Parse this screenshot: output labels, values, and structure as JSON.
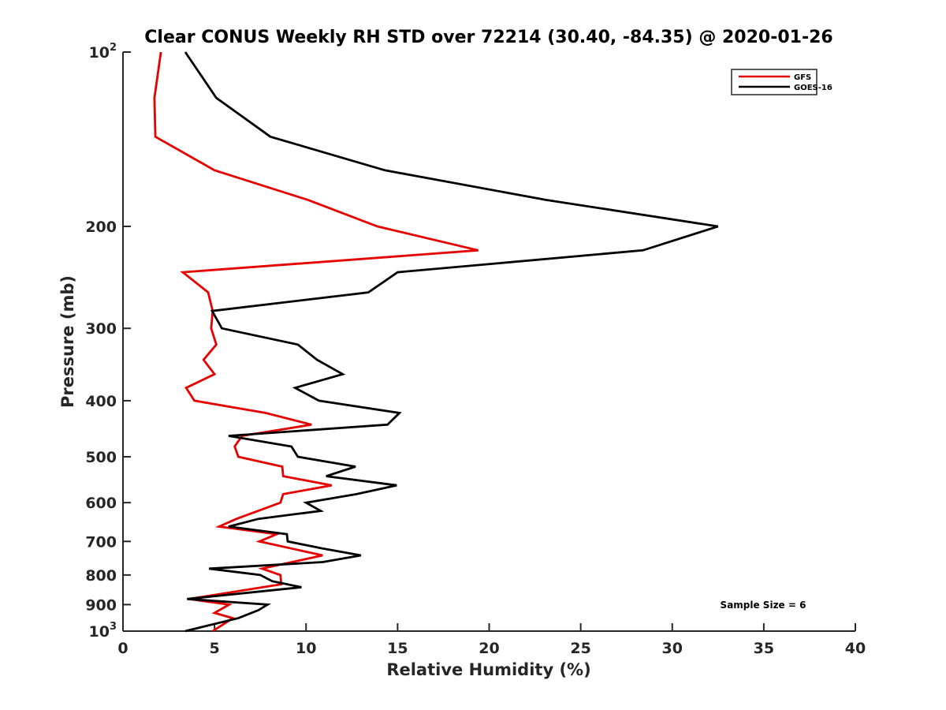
{
  "chart_data": {
    "type": "line",
    "title": "Clear CONUS Weekly RH STD over 72214 (30.40, -84.35) @ 2020-01-26",
    "xlabel": "Relative Humidity (%)",
    "ylabel": "Pressure (mb)",
    "xlim": [
      0,
      40
    ],
    "ylim": [
      100,
      1000
    ],
    "yscale": "log",
    "yaxis_reversed": true,
    "grid": false,
    "xticks": [
      0,
      5,
      10,
      15,
      20,
      25,
      30,
      35,
      40
    ],
    "xtick_labels": [
      "0",
      "5",
      "10",
      "15",
      "20",
      "25",
      "30",
      "35",
      "40"
    ],
    "yticks": [
      100,
      200,
      300,
      400,
      500,
      600,
      700,
      800,
      900,
      1000
    ],
    "ytick_labels": [
      {
        "base": "10",
        "sup": "2"
      },
      {
        "base": "200",
        "sup": ""
      },
      {
        "base": "300",
        "sup": ""
      },
      {
        "base": "400",
        "sup": ""
      },
      {
        "base": "500",
        "sup": ""
      },
      {
        "base": "600",
        "sup": ""
      },
      {
        "base": "700",
        "sup": ""
      },
      {
        "base": "800",
        "sup": ""
      },
      {
        "base": "900",
        "sup": ""
      },
      {
        "base": "10",
        "sup": "3"
      }
    ],
    "legend": {
      "position": "top-right",
      "entries": [
        "GFS",
        "GOES-16"
      ]
    },
    "annotation": "Sample Size = 6",
    "series": [
      {
        "name": "GFS",
        "color": "#e60000",
        "rh": [
          2.07,
          1.72,
          1.77,
          5.0,
          10.1,
          13.9,
          19.4,
          3.27,
          4.65,
          4.9,
          4.82,
          5.1,
          4.4,
          5.0,
          3.45,
          3.9,
          7.8,
          10.3,
          6.5,
          6.1,
          6.3,
          8.7,
          8.75,
          11.4,
          8.75,
          8.6,
          6.2,
          5.25,
          8.4,
          7.45,
          10.9,
          7.6,
          8.6,
          8.65,
          3.6,
          5.8,
          5.0,
          6.0,
          4.9
        ],
        "pressure": [
          100,
          120,
          140,
          160,
          180,
          200,
          220,
          240,
          260,
          280,
          300,
          320,
          340,
          360,
          380,
          400,
          420,
          440,
          460,
          480,
          500,
          520,
          540,
          560,
          580,
          600,
          640,
          660,
          680,
          700,
          740,
          780,
          800,
          830,
          880,
          900,
          930,
          950,
          1000
        ]
      },
      {
        "name": "GOES-16",
        "color": "#000000",
        "rh": [
          3.4,
          5.1,
          8.05,
          14.3,
          23.1,
          32.5,
          28.4,
          15.0,
          13.4,
          4.87,
          5.4,
          9.55,
          10.6,
          12.0,
          9.4,
          10.7,
          15.1,
          14.45,
          5.77,
          9.2,
          9.55,
          12.7,
          11.1,
          14.95,
          12.75,
          10.0,
          10.8,
          7.4,
          5.77,
          8.95,
          9.0,
          10.9,
          13.0,
          10.9,
          4.7,
          7.5,
          8.15,
          9.75,
          3.5,
          7.9,
          7.4,
          6.3,
          3.4
        ],
        "pressure": [
          100,
          120,
          140,
          160,
          180,
          200,
          220,
          240,
          260,
          280,
          300,
          320,
          340,
          360,
          380,
          400,
          420,
          440,
          460,
          480,
          500,
          520,
          540,
          560,
          580,
          600,
          620,
          640,
          660,
          680,
          700,
          720,
          740,
          760,
          780,
          800,
          820,
          840,
          880,
          900,
          920,
          950,
          1000
        ]
      }
    ]
  }
}
